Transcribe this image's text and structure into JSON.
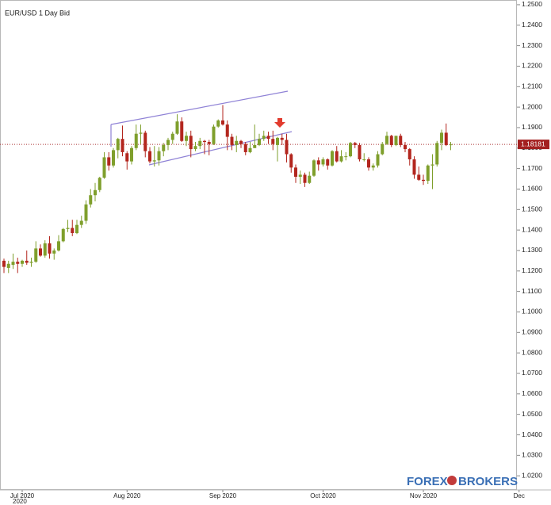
{
  "chart_data": {
    "type": "candlestick",
    "title": "EUR/USD  1 Day Bid",
    "year_label": "2020",
    "watermark": [
      "FOREX",
      "BROKERS"
    ],
    "last_price": 1.18181,
    "up_color": "#7f9f2c",
    "down_color": "#b3261e",
    "categories": [
      null,
      null,
      null,
      null,
      "Jul 2020",
      null,
      null,
      null,
      null,
      null,
      null,
      null,
      null,
      null,
      null,
      null,
      null,
      null,
      null,
      null,
      null,
      null,
      null,
      null,
      null,
      null,
      null,
      "Aug 2020",
      null,
      null,
      null,
      null,
      null,
      null,
      null,
      null,
      null,
      null,
      null,
      null,
      null,
      null,
      null,
      null,
      null,
      null,
      null,
      null,
      "Sep 2020",
      null,
      null,
      null,
      null,
      null,
      null,
      null,
      null,
      null,
      null,
      null,
      null,
      null,
      null,
      null,
      null,
      null,
      null,
      null,
      null,
      null,
      "Oct 2020",
      null,
      null,
      null,
      null,
      null,
      null,
      null,
      null,
      null,
      null,
      null,
      null,
      null,
      null,
      null,
      null,
      null,
      null,
      null,
      null,
      null,
      "Nov 2020",
      null,
      null,
      null,
      null,
      null,
      null,
      null,
      null,
      null,
      null,
      null,
      null,
      null,
      null,
      null,
      null,
      null,
      null,
      null,
      null,
      "Dec"
    ],
    "open": [
      1.125,
      1.1215,
      1.123,
      1.1245,
      1.1235,
      1.125,
      1.124,
      1.1245,
      1.131,
      1.1275,
      1.1335,
      1.1285,
      1.13,
      1.1345,
      1.1405,
      1.141,
      1.1385,
      1.1425,
      1.1445,
      1.1525,
      1.157,
      1.1595,
      1.1655,
      1.1755,
      1.1715,
      1.179,
      1.1845,
      1.1775,
      1.1735,
      1.18,
      1.187,
      1.1875,
      1.1785,
      1.1735,
      1.174,
      1.1785,
      1.1815,
      1.184,
      1.187,
      1.193,
      1.1835,
      1.186,
      1.1795,
      1.181,
      1.1835,
      1.183,
      1.182,
      1.1905,
      1.1935,
      1.1915,
      1.1855,
      1.1815,
      1.1835,
      1.182,
      1.178,
      1.18,
      1.1815,
      1.1845,
      1.186,
      1.1845,
      1.1815,
      1.185,
      1.184,
      1.177,
      1.1705,
      1.166,
      1.167,
      1.163,
      1.1665,
      1.174,
      1.172,
      1.1745,
      1.1715,
      1.1785,
      1.1735,
      1.176,
      1.176,
      1.1825,
      1.1815,
      1.1745,
      1.1745,
      1.1705,
      1.1715,
      1.177,
      1.182,
      1.186,
      1.1815,
      1.186,
      1.1815,
      1.1795,
      1.1745,
      1.167,
      1.1645,
      1.164,
      1.1715,
      1.172,
      1.1825,
      1.1875,
      1.1815,
      null,
      null,
      null,
      null,
      null,
      null,
      null,
      null,
      null,
      null,
      null,
      null,
      null,
      null,
      null
    ],
    "high": [
      1.126,
      1.125,
      1.1285,
      1.1265,
      1.1255,
      1.13,
      1.1265,
      1.1345,
      1.133,
      1.135,
      1.137,
      1.131,
      1.1375,
      1.141,
      1.145,
      1.145,
      1.145,
      1.147,
      1.1545,
      1.16,
      1.163,
      1.166,
      1.178,
      1.178,
      1.18,
      1.185,
      1.191,
      1.1785,
      1.181,
      1.1915,
      1.1915,
      1.1885,
      1.1805,
      1.181,
      1.1805,
      1.1825,
      1.185,
      1.188,
      1.1965,
      1.195,
      1.188,
      1.1885,
      1.183,
      1.185,
      1.184,
      1.184,
      1.1915,
      1.194,
      1.201,
      1.1935,
      1.187,
      1.186,
      1.184,
      1.183,
      1.183,
      1.1915,
      1.187,
      1.1885,
      1.188,
      1.1885,
      1.1855,
      1.187,
      1.187,
      1.1775,
      1.172,
      1.169,
      1.168,
      1.1685,
      1.1745,
      1.1755,
      1.1755,
      1.175,
      1.179,
      1.181,
      1.179,
      1.178,
      1.183,
      1.183,
      1.1825,
      1.1775,
      1.1755,
      1.1725,
      1.1785,
      1.183,
      1.188,
      1.1865,
      1.186,
      1.187,
      1.183,
      1.18,
      1.176,
      1.171,
      1.167,
      1.172,
      1.177,
      1.1835,
      1.189,
      1.192,
      1.183,
      null,
      null,
      null,
      null,
      null,
      null,
      null,
      null,
      null,
      null,
      null,
      null,
      null,
      null,
      null
    ],
    "low": [
      1.119,
      1.119,
      1.121,
      1.119,
      1.122,
      1.123,
      1.122,
      1.124,
      1.127,
      1.1265,
      1.126,
      1.1255,
      1.1295,
      1.134,
      1.139,
      1.137,
      1.138,
      1.141,
      1.143,
      1.151,
      1.154,
      1.1585,
      1.165,
      1.169,
      1.1705,
      1.175,
      1.176,
      1.1695,
      1.172,
      1.179,
      1.182,
      1.1755,
      1.1725,
      1.171,
      1.1715,
      1.176,
      1.179,
      1.182,
      1.1865,
      1.183,
      1.181,
      1.1755,
      1.1785,
      1.1795,
      1.177,
      1.1765,
      1.1815,
      1.19,
      1.191,
      1.179,
      1.179,
      1.178,
      1.18,
      1.1765,
      1.1775,
      1.18,
      1.181,
      1.1835,
      1.182,
      1.179,
      1.1735,
      1.1815,
      1.173,
      1.168,
      1.163,
      1.1625,
      1.161,
      1.1625,
      1.166,
      1.169,
      1.171,
      1.1695,
      1.171,
      1.173,
      1.173,
      1.174,
      1.1755,
      1.18,
      1.1735,
      1.1735,
      1.169,
      1.169,
      1.1705,
      1.1765,
      1.1815,
      1.1805,
      1.181,
      1.1805,
      1.178,
      1.1715,
      1.165,
      1.164,
      1.162,
      1.1625,
      1.16,
      1.171,
      1.179,
      1.181,
      1.179,
      null,
      null,
      null,
      null,
      null,
      null,
      null,
      null,
      null,
      null,
      null,
      null,
      null,
      null,
      null
    ],
    "close": [
      1.122,
      1.1235,
      1.1245,
      1.1235,
      1.125,
      1.124,
      1.1245,
      1.131,
      1.1275,
      1.1335,
      1.1285,
      1.13,
      1.1345,
      1.1405,
      1.141,
      1.1385,
      1.1425,
      1.1445,
      1.1525,
      1.157,
      1.1595,
      1.1655,
      1.1755,
      1.1715,
      1.179,
      1.1845,
      1.178,
      1.1735,
      1.18,
      1.187,
      1.1875,
      1.1785,
      1.1735,
      1.174,
      1.1785,
      1.1815,
      1.184,
      1.187,
      1.193,
      1.1835,
      1.186,
      1.1795,
      1.181,
      1.1835,
      1.183,
      1.182,
      1.1905,
      1.1935,
      1.1915,
      1.1855,
      1.1815,
      1.1835,
      1.182,
      1.178,
      1.18,
      1.1815,
      1.1845,
      1.186,
      1.1845,
      1.182,
      1.185,
      1.184,
      1.177,
      1.1705,
      1.166,
      1.167,
      1.163,
      1.1665,
      1.174,
      1.172,
      1.1745,
      1.1715,
      1.1785,
      1.1735,
      1.176,
      1.176,
      1.1825,
      1.1815,
      1.1745,
      1.1745,
      1.1705,
      1.1715,
      1.177,
      1.182,
      1.186,
      1.1815,
      1.186,
      1.1815,
      1.1795,
      1.1745,
      1.167,
      1.1645,
      1.164,
      1.1715,
      1.172,
      1.1825,
      1.1875,
      1.1815,
      1.1818,
      null,
      null,
      null,
      null,
      null,
      null,
      null,
      null,
      null,
      null,
      null,
      null,
      null,
      null,
      null
    ],
    "ylim": [
      1.0131,
      1.2523
    ],
    "yticks": [
      {
        "value": 1.02,
        "label": "1.0200"
      },
      {
        "value": 1.03,
        "label": "1.0300"
      },
      {
        "value": 1.04,
        "label": "1.0400"
      },
      {
        "value": 1.05,
        "label": "1.0500"
      },
      {
        "value": 1.06,
        "label": "1.0600"
      },
      {
        "value": 1.07,
        "label": "1.0700"
      },
      {
        "value": 1.08,
        "label": "1.0800"
      },
      {
        "value": 1.09,
        "label": "1.0900"
      },
      {
        "value": 1.1,
        "label": "1.1000"
      },
      {
        "value": 1.11,
        "label": "1.1100"
      },
      {
        "value": 1.12,
        "label": "1.1200"
      },
      {
        "value": 1.13,
        "label": "1.1300"
      },
      {
        "value": 1.14,
        "label": "1.1400"
      },
      {
        "value": 1.15,
        "label": "1.1500"
      },
      {
        "value": 1.16,
        "label": "1.1600"
      },
      {
        "value": 1.17,
        "label": "1.1700"
      },
      {
        "value": 1.18,
        "label": "1.1800"
      },
      {
        "value": 1.19,
        "label": "1.1900"
      },
      {
        "value": 1.2,
        "label": "1.2000"
      },
      {
        "value": 1.21,
        "label": "1.2100"
      },
      {
        "value": 1.22,
        "label": "1.2200"
      },
      {
        "value": 1.23,
        "label": "1.2300"
      },
      {
        "value": 1.24,
        "label": "1.2400"
      },
      {
        "value": 1.25,
        "label": "1.2500"
      }
    ]
  }
}
